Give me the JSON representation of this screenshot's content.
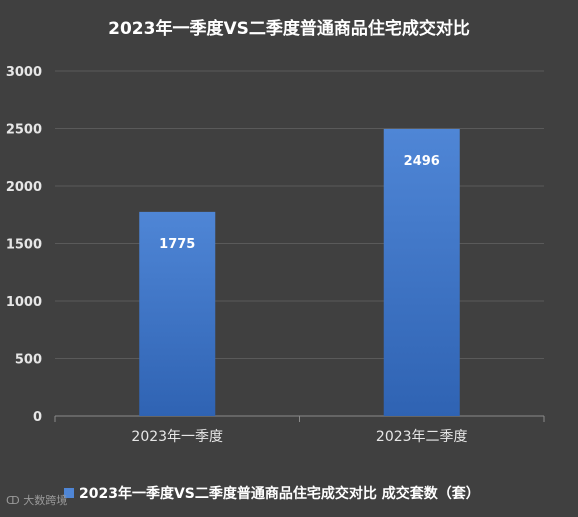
{
  "chart_data": {
    "type": "bar",
    "title": "2023年一季度VS二季度普通商品住宅成交对比",
    "categories": [
      "2023年一季度",
      "2023年二季度"
    ],
    "series": [
      {
        "name": "2023年一季度VS二季度普通商品住宅成交对比 成交套数（套）",
        "values": [
          1775,
          2496
        ]
      }
    ],
    "data_labels": [
      "1775",
      "2496"
    ],
    "xlabel": "",
    "ylabel": "",
    "ylim": [
      0,
      3000
    ],
    "yticks": [
      "0",
      "500",
      "1000",
      "1500",
      "2000",
      "2500",
      "3000"
    ],
    "grid": true,
    "legend_position": "bottom",
    "colors": {
      "background": "#404040",
      "bar_top": "#4f86d6",
      "bar_bottom": "#2f63b3",
      "grid": "#5a5a5a",
      "text": "#ffffff",
      "tick_text": "#e6e6e6"
    }
  },
  "watermark": {
    "text": "大数跨境"
  }
}
